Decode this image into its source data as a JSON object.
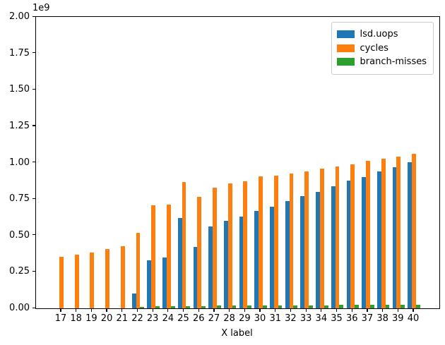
{
  "figure": {
    "background": "#ffffff",
    "text_color": "#000000"
  },
  "chart_data": {
    "type": "bar",
    "title": "",
    "xlabel": "X label",
    "ylabel": "",
    "y_offset_label": "1e9",
    "ylim": [
      0,
      2000000000
    ],
    "ytick_step": 250000000,
    "ytick_labels": [
      "0.00",
      "0.25",
      "0.50",
      "0.75",
      "1.00",
      "1.25",
      "1.50",
      "1.75",
      "2.00"
    ],
    "grid": false,
    "legend_position": "upper right",
    "categories": [
      "17",
      "18",
      "19",
      "20",
      "21",
      "22",
      "23",
      "24",
      "25",
      "26",
      "27",
      "28",
      "29",
      "30",
      "31",
      "32",
      "33",
      "34",
      "35",
      "36",
      "37",
      "38",
      "39",
      "40"
    ],
    "series": [
      {
        "name": "lsd.uops",
        "color": "#1f77b4",
        "values": [
          0,
          0,
          0,
          0,
          0,
          100000000,
          330000000,
          350000000,
          620000000,
          420000000,
          560000000,
          600000000,
          630000000,
          670000000,
          700000000,
          735000000,
          770000000,
          800000000,
          840000000,
          875000000,
          900000000,
          940000000,
          970000000,
          1005000000
        ]
      },
      {
        "name": "cycles",
        "color": "#ff7f0e",
        "values": [
          355000000,
          370000000,
          385000000,
          405000000,
          425000000,
          520000000,
          705000000,
          710000000,
          865000000,
          765000000,
          830000000,
          855000000,
          870000000,
          905000000,
          910000000,
          925000000,
          940000000,
          960000000,
          975000000,
          990000000,
          1010000000,
          1025000000,
          1040000000,
          1060000000
        ]
      },
      {
        "name": "branch-misses",
        "color": "#2ca02c",
        "values": [
          0,
          0,
          0,
          0,
          0,
          12000000,
          15000000,
          15000000,
          17000000,
          17000000,
          19000000,
          19000000,
          20000000,
          20000000,
          21000000,
          21000000,
          22000000,
          22000000,
          23000000,
          23000000,
          24000000,
          24000000,
          25000000,
          25000000
        ]
      }
    ]
  }
}
